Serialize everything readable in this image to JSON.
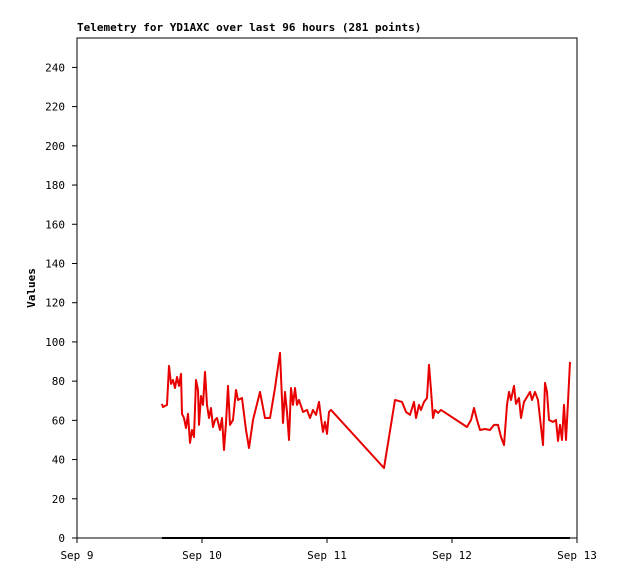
{
  "chart_data": {
    "type": "line",
    "title": "Telemetry for YD1AXC over last 96 hours (281 points)",
    "y_label": "Values",
    "xlim": [
      0,
      4
    ],
    "xticks": [
      {
        "value": 0,
        "label": "Sep 9"
      },
      {
        "value": 1,
        "label": "Sep 10"
      },
      {
        "value": 2,
        "label": "Sep 11"
      },
      {
        "value": 3,
        "label": "Sep 12"
      },
      {
        "value": 4,
        "label": "Sep 13"
      }
    ],
    "ylim": [
      0,
      255
    ],
    "yticks": [
      0,
      20,
      40,
      60,
      80,
      100,
      120,
      140,
      160,
      180,
      200,
      220,
      240
    ],
    "grid": false,
    "series": [
      {
        "color": "#e80000",
        "x": [
          0.68,
          0.688,
          0.72,
          0.736,
          0.752,
          0.768,
          0.784,
          0.8,
          0.816,
          0.832,
          0.84,
          0.856,
          0.872,
          0.888,
          0.904,
          0.92,
          0.936,
          0.952,
          0.968,
          0.976,
          0.992,
          1.008,
          1.024,
          1.04,
          1.056,
          1.072,
          1.088,
          1.104,
          1.12,
          1.144,
          1.16,
          1.176,
          1.192,
          1.208,
          1.224,
          1.248,
          1.272,
          1.288,
          1.32,
          1.352,
          1.376,
          1.408,
          1.464,
          1.504,
          1.544,
          1.584,
          1.624,
          1.648,
          1.664,
          1.68,
          1.696,
          1.712,
          1.728,
          1.744,
          1.76,
          1.776,
          1.808,
          1.84,
          1.864,
          1.888,
          1.912,
          1.936,
          1.952,
          1.968,
          1.984,
          2.0,
          2.016,
          2.032,
          2.456,
          2.544,
          2.6,
          2.632,
          2.664,
          2.696,
          2.712,
          2.736,
          2.752,
          2.776,
          2.8,
          2.816,
          2.832,
          2.848,
          2.864,
          2.888,
          2.912,
          3.12,
          3.152,
          3.176,
          3.2,
          3.224,
          3.264,
          3.304,
          3.336,
          3.368,
          3.392,
          3.416,
          3.44,
          3.456,
          3.472,
          3.496,
          3.512,
          3.536,
          3.552,
          3.576,
          3.6,
          3.624,
          3.64,
          3.664,
          3.688,
          3.704,
          3.728,
          3.744,
          3.76,
          3.776,
          3.808,
          3.832,
          3.848,
          3.864,
          3.88,
          3.896,
          3.912,
          3.928,
          3.944
        ],
        "values": [
          68.4,
          66.8,
          67.9,
          87.8,
          78.6,
          80.6,
          76.5,
          82.1,
          77.6,
          83.7,
          63.3,
          61.2,
          56.1,
          63.3,
          48.5,
          55.1,
          51.5,
          80.6,
          75.5,
          57.7,
          72.4,
          67.9,
          84.7,
          67.9,
          61.2,
          66.3,
          56.6,
          60.2,
          61.2,
          55.1,
          61.2,
          44.9,
          58.7,
          77.6,
          57.7,
          60.2,
          75.5,
          70.4,
          71.4,
          55.1,
          45.9,
          60.2,
          74.5,
          61.2,
          61.2,
          76.5,
          94.4,
          58.7,
          74.5,
          64.3,
          50,
          76.5,
          67.9,
          76.5,
          67.9,
          70.4,
          64.3,
          65.3,
          61.2,
          65.3,
          62.8,
          69.4,
          61.2,
          54.1,
          59.2,
          53.1,
          64.3,
          65.3,
          35.7,
          70.4,
          69.4,
          64.3,
          62.8,
          69.4,
          61.2,
          67.9,
          65.3,
          69.4,
          71.4,
          88.3,
          75.5,
          61.2,
          65.3,
          63.8,
          65.3,
          56.6,
          60.2,
          66.3,
          60.2,
          55.1,
          55.6,
          55.1,
          57.7,
          57.7,
          51.5,
          47.4,
          67.9,
          74.5,
          70.4,
          77.6,
          68.4,
          71.4,
          61.2,
          69.4,
          71.9,
          74.5,
          70.4,
          74.5,
          70.4,
          61.2,
          47.4,
          79.1,
          74.5,
          60.2,
          59.2,
          60.2,
          49.5,
          57.7,
          50,
          67.9,
          50,
          69.4,
          89.8
        ]
      },
      {
        "color": "#000000",
        "x": [
          0.68,
          3.944
        ],
        "values": [
          0,
          0
        ]
      }
    ]
  }
}
